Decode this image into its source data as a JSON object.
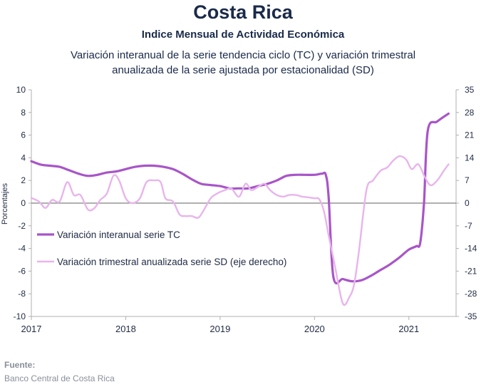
{
  "header": {
    "title": "Costa Rica",
    "subtitle": "Indice Mensual de  Actividad Económica",
    "description_line1": "Variación interanual de la serie tendencia ciclo (TC) y variación trimestral",
    "description_line2": "anualizada de la serie ajustada por estacionalidad (SD)"
  },
  "footer": {
    "source_label": "Fuente:",
    "source_text": "Banco Central de Costa Rica"
  },
  "colors": {
    "tc": "#a855c8",
    "sd": "#e8b4ec",
    "axis": "#b0b0b0",
    "zero_line": "#808080"
  },
  "chart_data": {
    "type": "line",
    "ylabel": "Porcentajes",
    "left_axis": {
      "ylim": [
        -10,
        10
      ],
      "ticks": [
        -10,
        -8,
        -6,
        -4,
        -2,
        0,
        2,
        4,
        6,
        8,
        10
      ]
    },
    "right_axis": {
      "ylim": [
        -35,
        35
      ],
      "ticks": [
        -35,
        -28,
        -21,
        -14,
        -7,
        0,
        7,
        14,
        21,
        28,
        35
      ]
    },
    "x_ticks": [
      "2017",
      "2018",
      "2019",
      "2020",
      "2021"
    ],
    "xlim": [
      2017.0,
      2021.5
    ],
    "legend_position": "left-middle",
    "series": [
      {
        "name": "Variación interanual serie TC",
        "axis": "left",
        "x": [
          2017.0,
          2017.1,
          2017.2,
          2017.3,
          2017.4,
          2017.5,
          2017.6,
          2017.7,
          2017.8,
          2017.9,
          2018.0,
          2018.1,
          2018.2,
          2018.3,
          2018.4,
          2018.5,
          2018.6,
          2018.7,
          2018.8,
          2018.9,
          2019.0,
          2019.1,
          2019.2,
          2019.3,
          2019.4,
          2019.5,
          2019.6,
          2019.7,
          2019.8,
          2019.9,
          2020.0,
          2020.08,
          2020.12,
          2020.15,
          2020.2,
          2020.3,
          2020.4,
          2020.5,
          2020.6,
          2020.7,
          2020.8,
          2020.9,
          2021.0,
          2021.08,
          2021.12,
          2021.16,
          2021.2,
          2021.3,
          2021.42
        ],
        "values": [
          3.7,
          3.4,
          3.3,
          3.2,
          2.9,
          2.6,
          2.4,
          2.5,
          2.7,
          2.8,
          3.0,
          3.2,
          3.3,
          3.3,
          3.2,
          3.0,
          2.6,
          2.1,
          1.7,
          1.6,
          1.5,
          1.3,
          1.3,
          1.3,
          1.5,
          1.7,
          2.0,
          2.4,
          2.5,
          2.5,
          2.5,
          2.6,
          2.5,
          0.5,
          -6.5,
          -6.7,
          -6.9,
          -6.8,
          -6.4,
          -5.9,
          -5.4,
          -4.8,
          -4.1,
          -3.8,
          -3.5,
          0.0,
          6.4,
          7.2,
          7.9
        ]
      },
      {
        "name": "Variación trimestral anualizada serie SD (eje derecho)",
        "axis": "right",
        "x": [
          2017.0,
          2017.08,
          2017.15,
          2017.22,
          2017.3,
          2017.38,
          2017.45,
          2017.52,
          2017.6,
          2017.67,
          2017.73,
          2017.8,
          2017.87,
          2017.93,
          2018.0,
          2018.07,
          2018.15,
          2018.22,
          2018.3,
          2018.37,
          2018.42,
          2018.5,
          2018.57,
          2018.63,
          2018.7,
          2018.77,
          2018.83,
          2018.9,
          2018.97,
          2019.05,
          2019.12,
          2019.2,
          2019.27,
          2019.33,
          2019.4,
          2019.47,
          2019.53,
          2019.6,
          2019.67,
          2019.73,
          2019.8,
          2019.87,
          2019.93,
          2020.0,
          2020.05,
          2020.1,
          2020.15,
          2020.22,
          2020.3,
          2020.37,
          2020.42,
          2020.47,
          2020.55,
          2020.62,
          2020.7,
          2020.77,
          2020.83,
          2020.9,
          2020.97,
          2021.03,
          2021.1,
          2021.17,
          2021.23,
          2021.3,
          2021.37,
          2021.42
        ],
        "values": [
          1.6,
          0.5,
          -1.5,
          1.0,
          0.5,
          6.5,
          2.5,
          2.5,
          -2.0,
          -1.5,
          1.0,
          3.0,
          8.5,
          7.0,
          1.5,
          0.0,
          1.5,
          6.5,
          7.0,
          6.5,
          1.5,
          0.5,
          -3.5,
          -4.0,
          -4.0,
          -4.5,
          -2.0,
          1.5,
          3.0,
          4.0,
          4.5,
          2.0,
          6.0,
          4.0,
          5.0,
          6.0,
          4.0,
          2.5,
          2.0,
          2.5,
          2.5,
          2.0,
          1.8,
          1.5,
          1.2,
          -2.5,
          -10.0,
          -20.0,
          -31.0,
          -29.0,
          -25.0,
          -15.0,
          4.0,
          7.0,
          10.0,
          11.0,
          13.0,
          14.5,
          13.5,
          10.5,
          12.0,
          8.0,
          5.5,
          7.0,
          10.0,
          12.0
        ]
      }
    ]
  }
}
